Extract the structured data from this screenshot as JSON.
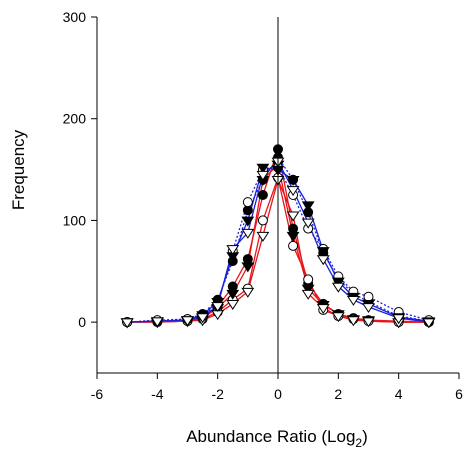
{
  "chart_data": {
    "type": "line",
    "title": "",
    "xlabel": "Abundance Ratio (Log",
    "xlabel_subscript": "2",
    "xlabel_close": ")",
    "ylabel": "Frequency",
    "xlim": [
      -6,
      6
    ],
    "ylim": [
      -50,
      300
    ],
    "xticks": [
      -6,
      -4,
      -2,
      0,
      2,
      4,
      6
    ],
    "xtick_labels": [
      "-6",
      "-4",
      "-2",
      "0",
      "2",
      "4",
      "6"
    ],
    "yticks": [
      0,
      100,
      200,
      300
    ],
    "ytick_labels": [
      "0",
      "100",
      "200",
      "300"
    ],
    "grid": false,
    "legend": "none",
    "reference_line_x": 0,
    "series": [
      {
        "color": "#e8151b",
        "dash": "solid",
        "marker": "filled-circle",
        "x": [
          -5,
          -4,
          -3,
          -2.5,
          -2,
          -1.5,
          -1,
          -0.5,
          0,
          0.5,
          1,
          1.5,
          2,
          2.5,
          3,
          4,
          5
        ],
        "y": [
          0,
          1,
          2,
          5,
          15,
          35,
          62,
          125,
          170,
          92,
          38,
          18,
          8,
          4,
          2,
          1,
          0
        ]
      },
      {
        "color": "#e8151b",
        "dash": "solid",
        "marker": "open-circle",
        "x": [
          -5,
          -4,
          -3,
          -2.5,
          -2,
          -1.5,
          -1,
          -0.5,
          0,
          0.5,
          1,
          1.5,
          2,
          2.5,
          3,
          4,
          5
        ],
        "y": [
          0,
          0,
          1,
          3,
          10,
          22,
          33,
          100,
          142,
          75,
          42,
          12,
          6,
          3,
          1,
          0,
          0
        ]
      },
      {
        "color": "#e8151b",
        "dash": "solid",
        "marker": "filled-triangle-down",
        "x": [
          -5,
          -4,
          -3,
          -2.5,
          -2,
          -1.5,
          -1,
          -0.5,
          0,
          0.5,
          1,
          1.5,
          2,
          2.5,
          3,
          4,
          5
        ],
        "y": [
          0,
          1,
          2,
          4,
          14,
          28,
          55,
          140,
          155,
          85,
          33,
          17,
          8,
          3,
          2,
          0,
          0
        ]
      },
      {
        "color": "#e8151b",
        "dash": "solid",
        "marker": "open-triangle-down",
        "x": [
          -5,
          -4,
          -3,
          -2.5,
          -2,
          -1.5,
          -1,
          -0.5,
          0,
          0.5,
          1,
          1.5,
          2,
          2.5,
          3,
          4,
          5
        ],
        "y": [
          0,
          0,
          1,
          2,
          8,
          18,
          30,
          85,
          140,
          105,
          28,
          14,
          6,
          2,
          1,
          0,
          0
        ]
      },
      {
        "color": "#1b22d6",
        "dash": "dotted",
        "marker": "filled-circle",
        "x": [
          -5,
          -4,
          -3,
          -2.5,
          -2,
          -1.5,
          -1,
          -0.5,
          0,
          0.5,
          1,
          1.5,
          2,
          2.5,
          3,
          4,
          5
        ],
        "y": [
          0,
          1,
          3,
          8,
          22,
          60,
          110,
          140,
          162,
          140,
          108,
          68,
          42,
          28,
          20,
          6,
          1
        ]
      },
      {
        "color": "#1b22d6",
        "dash": "dotted",
        "marker": "open-circle",
        "x": [
          -5,
          -4,
          -3,
          -2.5,
          -2,
          -1.5,
          -1,
          -0.5,
          0,
          0.5,
          1,
          1.5,
          2,
          2.5,
          3,
          4,
          5
        ],
        "y": [
          0,
          2,
          3,
          6,
          18,
          70,
          118,
          150,
          152,
          125,
          92,
          72,
          45,
          30,
          25,
          10,
          2
        ]
      },
      {
        "color": "#1b22d6",
        "dash": "solid",
        "marker": "filled-triangle-down",
        "x": [
          -5,
          -4,
          -3,
          -2.5,
          -2,
          -1.5,
          -1,
          -0.5,
          0,
          0.5,
          1,
          1.5,
          2,
          2.5,
          3,
          4,
          5
        ],
        "y": [
          0,
          1,
          2,
          7,
          20,
          65,
          100,
          152,
          150,
          140,
          115,
          70,
          40,
          25,
          18,
          5,
          1
        ]
      },
      {
        "color": "#1b22d6",
        "dash": "solid",
        "marker": "open-triangle-down",
        "x": [
          -5,
          -4,
          -3,
          -2.5,
          -2,
          -1.5,
          -1,
          -0.5,
          0,
          0.5,
          1,
          1.5,
          2,
          2.5,
          3,
          4,
          5
        ],
        "y": [
          0,
          1,
          2,
          5,
          16,
          72,
          88,
          145,
          158,
          130,
          98,
          62,
          35,
          22,
          15,
          4,
          0
        ]
      }
    ]
  }
}
